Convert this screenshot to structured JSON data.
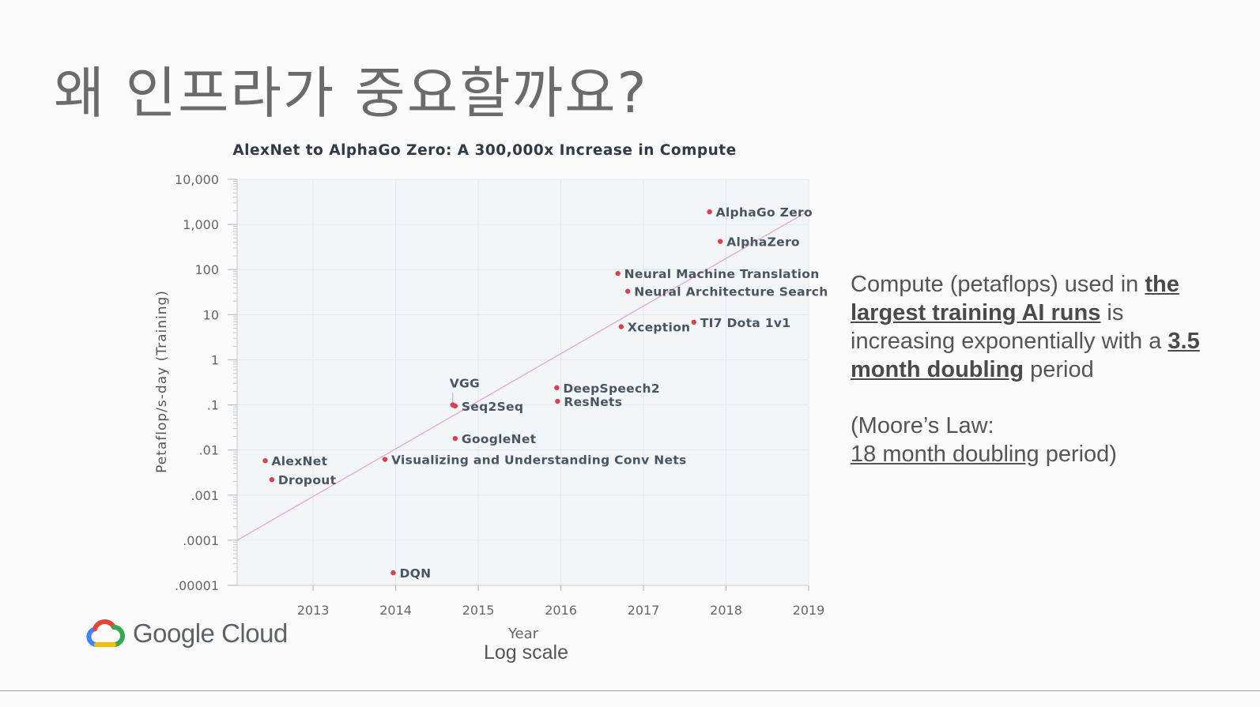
{
  "slide": {
    "title": "왜 인프라가 중요할까요?",
    "side_text": {
      "p1_pre": "Compute (petaflops) used in ",
      "p1_bold1": "the largest training AI runs",
      "p1_mid": " is increasing exponentially with a ",
      "p1_bold2": "3.5 month doubling",
      "p1_post": " period",
      "p2_line1": "(Moore’s Law:",
      "p2_u": "18 month doubling",
      "p2_post": " period)"
    },
    "logo_text": "Google Cloud",
    "log_note": "Log scale"
  },
  "colors": {
    "point": "#d9414e",
    "trend": "#e3a6d6",
    "plot_bg": "#f3f6f9",
    "grid": "#e2e8ee",
    "label": "#4a5562"
  },
  "chart_data": {
    "type": "scatter",
    "title": "AlexNet to AlphaGo Zero: A 300,000x Increase in Compute",
    "xlabel": "Year",
    "ylabel": "Petaflop/s-day (Training)",
    "x_scale": "linear",
    "y_scale": "log",
    "xlim": [
      2012.08,
      2019
    ],
    "ylim": [
      1e-05,
      10000
    ],
    "x_ticks": [
      2013,
      2014,
      2015,
      2016,
      2017,
      2018,
      2019
    ],
    "y_ticks": [
      {
        "value": 10000,
        "label": "10,000"
      },
      {
        "value": 1000,
        "label": "1,000"
      },
      {
        "value": 100,
        "label": "100"
      },
      {
        "value": 10,
        "label": "10"
      },
      {
        "value": 1,
        "label": "1"
      },
      {
        "value": 0.1,
        "label": ".1"
      },
      {
        "value": 0.01,
        "label": ".01"
      },
      {
        "value": 0.001,
        "label": ".001"
      },
      {
        "value": 0.0001,
        "label": ".0001"
      },
      {
        "value": 1e-05,
        "label": ".00001"
      }
    ],
    "grid": true,
    "trend_line": {
      "x": [
        2012.08,
        2019
      ],
      "y": [
        0.0001,
        2000
      ]
    },
    "points": [
      {
        "name": "AlexNet",
        "x": 2012.42,
        "y": 0.0058
      },
      {
        "name": "Dropout",
        "x": 2012.5,
        "y": 0.0022
      },
      {
        "name": "DQN",
        "x": 2013.97,
        "y": 1.9e-05
      },
      {
        "name": "Visualizing and Understanding Conv Nets",
        "x": 2013.87,
        "y": 0.0062
      },
      {
        "name": "GoogleNet",
        "x": 2014.72,
        "y": 0.018
      },
      {
        "name": "VGG",
        "x": 2014.69,
        "y": 0.1
      },
      {
        "name": "Seq2Seq",
        "x": 2014.72,
        "y": 0.095
      },
      {
        "name": "DeepSpeech2",
        "x": 2015.95,
        "y": 0.24
      },
      {
        "name": "ResNets",
        "x": 2015.96,
        "y": 0.12
      },
      {
        "name": "Xception",
        "x": 2016.73,
        "y": 5.4
      },
      {
        "name": "Neural Machine Translation",
        "x": 2016.69,
        "y": 82
      },
      {
        "name": "Neural Architecture Search",
        "x": 2016.81,
        "y": 33
      },
      {
        "name": "TI7 Dota 1v1",
        "x": 2017.61,
        "y": 6.8
      },
      {
        "name": "AlphaGo Zero",
        "x": 2017.8,
        "y": 1900
      },
      {
        "name": "AlphaZero",
        "x": 2017.93,
        "y": 420
      }
    ]
  }
}
